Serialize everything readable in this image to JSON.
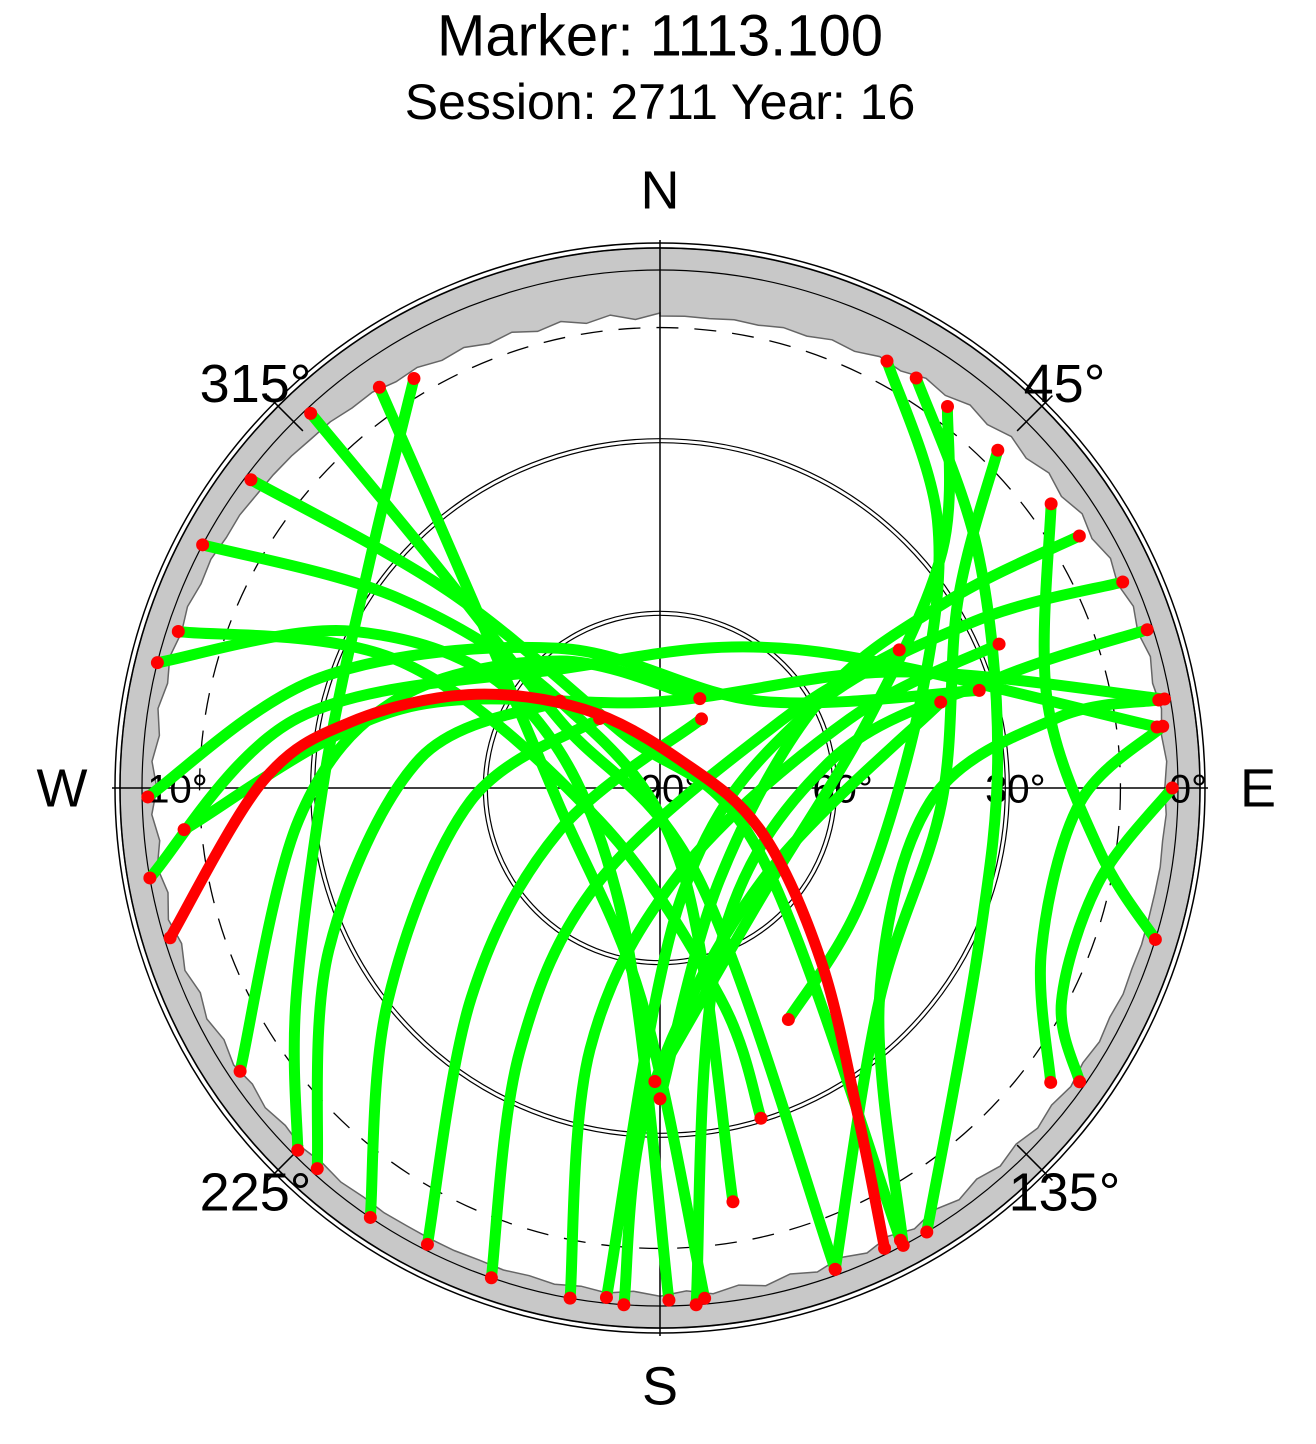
{
  "chart_data": {
    "type": "skyplot",
    "title": "Marker: 1113.100",
    "subtitle": "Session: 2711 Year: 16",
    "elevation_lim": [
      0,
      90
    ],
    "elevation_ticks": [
      {
        "value": 0,
        "label": "0°"
      },
      {
        "value": 30,
        "label": "30°"
      },
      {
        "value": 60,
        "label": "60°"
      },
      {
        "value": 90,
        "label": "90°"
      }
    ],
    "mask_elevation": {
      "value": 10,
      "label": "10°"
    },
    "azimuth_ticks": [
      {
        "value": 0,
        "label": "N"
      },
      {
        "value": 45,
        "label": "45°"
      },
      {
        "value": 90,
        "label": "E"
      },
      {
        "value": 135,
        "label": "135°"
      },
      {
        "value": 180,
        "label": "S"
      },
      {
        "value": 225,
        "label": "225°"
      },
      {
        "value": 270,
        "label": "W"
      },
      {
        "value": 315,
        "label": "315°"
      }
    ],
    "endpoint_color": "#ff0000",
    "mask_color": "#c8c8c8",
    "series": [
      {
        "color": "#00ff00",
        "azimuth": [
          329,
          308,
          275,
          240,
          225
        ],
        "elevation": [
          7,
          26,
          32,
          17,
          1
        ]
      },
      {
        "color": "#00ff00",
        "azimuth": [
          325,
          315,
          263,
          185,
          175
        ],
        "elevation": [
          5,
          44,
          72,
          53,
          1
        ]
      },
      {
        "color": "#00ff00",
        "azimuth": [
          317,
          315,
          304,
          157,
          160
        ],
        "elevation": [
          1,
          34,
          69,
          73,
          1
        ]
      },
      {
        "color": "#00ff00",
        "azimuth": [
          307,
          313,
          325,
          122,
          152
        ],
        "elevation": [
          1,
          40,
          78,
          70,
          1
        ]
      },
      {
        "color": "#00ff00",
        "azimuth": [
          298,
          306,
          311,
          165,
          170
        ],
        "elevation": [
          0,
          34,
          67,
          77,
          17
        ]
      },
      {
        "color": "#00ff00",
        "azimuth": [
          284,
          297,
          302,
          200,
          179
        ],
        "elevation": [
          0,
          30,
          61,
          69,
          1
        ]
      },
      {
        "color": "#00ff00",
        "azimuth": [
          288,
          296,
          242,
          164,
          163
        ],
        "elevation": [
          2,
          40,
          78,
          52,
          30
        ]
      },
      {
        "color": "#00ff00",
        "azimuth": [
          269,
          288,
          324,
          49,
          73
        ],
        "elevation": [
          1,
          28,
          60,
          67,
          32
        ]
      },
      {
        "color": "#00ff00",
        "azimuth": [
          265,
          287,
          0,
          64,
          80
        ],
        "elevation": [
          7,
          43,
          75,
          44,
          1
        ]
      },
      {
        "color": "#00ff00",
        "azimuth": [
          260,
          281,
          320,
          45,
          83
        ],
        "elevation": [
          0,
          26,
          63,
          56,
          3
        ]
      },
      {
        "color": "#00ff00",
        "azimuth": [
          236,
          265,
          289,
          322,
          24
        ],
        "elevation": [
          2,
          27,
          42,
          62,
          73
        ]
      },
      {
        "color": "#00ff00",
        "azimuth": [
          222,
          244,
          277,
          311
        ],
        "elevation": [
          1,
          26,
          48,
          67
        ]
      },
      {
        "color": "#00ff00",
        "azimuth": [
          214,
          232,
          266,
          319
        ],
        "elevation": [
          0,
          30,
          57,
          74
        ]
      },
      {
        "color": "#00ff00",
        "azimuth": [
          207,
          222,
          247,
          31
        ],
        "elevation": [
          1,
          41,
          71,
          76
        ]
      },
      {
        "color": "#00ff00",
        "azimuth": [
          199,
          208,
          213,
          61,
          60
        ],
        "elevation": [
          0,
          38,
          71,
          66,
          42
        ]
      },
      {
        "color": "#00ff00",
        "azimuth": [
          190,
          195,
          166,
          70,
          67
        ],
        "elevation": [
          0,
          43,
          75,
          55,
          26
        ]
      },
      {
        "color": "#00ff00",
        "azimuth": [
          184,
          182,
          133,
          73
        ],
        "elevation": [
          0,
          36,
          66,
          39
        ]
      },
      {
        "color": "#00ff00",
        "azimuth": [
          28,
          46,
          71,
          119,
          151
        ],
        "elevation": [
          6,
          23,
          42,
          50,
          44
        ]
      },
      {
        "color": "#00ff00",
        "azimuth": [
          37,
          50,
          72,
          138,
          181
        ],
        "elevation": [
          7,
          26,
          52,
          64,
          39
        ]
      },
      {
        "color": "#00ff00",
        "azimuth": [
          32,
          53,
          84,
          117,
          149
        ],
        "elevation": [
          6,
          21,
          31,
          28,
          0
        ]
      },
      {
        "color": "#00ff00",
        "azimuth": [
          45,
          58,
          93,
          134,
          160
        ],
        "elevation": [
          7,
          29,
          41,
          37,
          1
        ]
      },
      {
        "color": "#00ff00",
        "azimuth": [
          59,
          57,
          61,
          147,
          180
        ],
        "elevation": [
          5,
          30,
          58,
          71,
          36
        ]
      },
      {
        "color": "#00ff00",
        "azimuth": [
          66,
          62,
          64,
          170,
          186
        ],
        "elevation": [
          2,
          29,
          63,
          70,
          1
        ]
      },
      {
        "color": "#00ff00",
        "azimuth": [
          72,
          72,
          81,
          160,
          176
        ],
        "elevation": [
          1,
          28,
          60,
          60,
          0
        ]
      },
      {
        "color": "#00ff00",
        "azimuth": [
          80,
          80,
          93,
          134,
          152
        ],
        "elevation": [
          2,
          20,
          43,
          37,
          0
        ]
      },
      {
        "color": "#00ff00",
        "azimuth": [
          83,
          92,
          113,
          127
        ],
        "elevation": [
          2,
          17,
          18,
          5
        ]
      },
      {
        "color": "#00ff00",
        "azimuth": [
          90,
          102,
          118,
          125
        ],
        "elevation": [
          1,
          12,
          11,
          1
        ]
      },
      {
        "color": "#00ff00",
        "azimuth": [
          54,
          77,
          98,
          107
        ],
        "elevation": [
          6,
          21,
          13,
          0
        ]
      },
      {
        "color": "#ff0000",
        "azimuth": [
          253,
          271,
          282,
          296,
          316,
          36,
          113,
          137,
          149,
          154
        ],
        "elevation": [
          1,
          21,
          35,
          53,
          71,
          84,
          71,
          49,
          23,
          1
        ]
      }
    ]
  }
}
